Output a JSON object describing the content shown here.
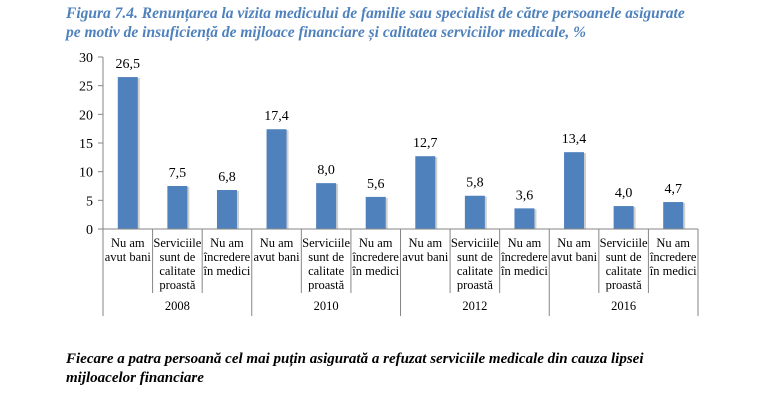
{
  "title": {
    "line1": "Figura 7.4. Renunțarea la vizita medicului de familie sau specialist de către persoanele asigurate",
    "line2": "pe motiv de insuficiență de mijloace financiare și calitatea serviciilor medicale, %"
  },
  "conclusion": {
    "line1": "Fiecare a patra persoană cel mai puțin asigurată a refuzat serviciile medicale din cauza lipsei",
    "line2": "mijloacelor financiare"
  },
  "colors": {
    "bar": "#4f81bd",
    "title": "#4f81bd",
    "axis": "#868686"
  },
  "chart_data": {
    "type": "bar",
    "title": "Figura 7.4. Renunțarea la vizita medicului de familie sau specialist de către persoanele asigurate pe motiv de insuficiență de mijloace financiare și calitatea serviciilor medicale, %",
    "xlabel": "",
    "ylabel": "",
    "ylim": [
      0,
      30
    ],
    "yticks": [
      "0",
      "5",
      "10",
      "15",
      "20",
      "25",
      "30"
    ],
    "ytick_values": [
      0,
      5,
      10,
      15,
      20,
      25,
      30
    ],
    "grid": false,
    "groups": [
      "2008",
      "2010",
      "2012",
      "2016"
    ],
    "category_labels": [
      [
        "Nu am",
        "avut bani"
      ],
      [
        "Serviciile",
        "sunt de",
        "calitate",
        "proastă"
      ],
      [
        "Nu am",
        "încredere",
        "în medici"
      ]
    ],
    "categories": [
      "Nu am avut bani",
      "Serviciile sunt de calitate proastă",
      "Nu am încredere în medici",
      "Nu am avut bani",
      "Serviciile sunt de calitate proastă",
      "Nu am încredere în medici",
      "Nu am avut bani",
      "Serviciile sunt de calitate proastă",
      "Nu am încredere în medici",
      "Nu am avut bani",
      "Serviciile sunt de calitate proastă",
      "Nu am încredere în medici"
    ],
    "values": [
      26.5,
      7.5,
      6.8,
      17.4,
      8.0,
      5.6,
      12.7,
      5.8,
      3.6,
      13.4,
      4.0,
      4.7
    ],
    "data_labels": [
      "26,5",
      "7,5",
      "6,8",
      "17,4",
      "8,0",
      "5,6",
      "12,7",
      "5,8",
      "3,6",
      "13,4",
      "4,0",
      "4,7"
    ]
  }
}
